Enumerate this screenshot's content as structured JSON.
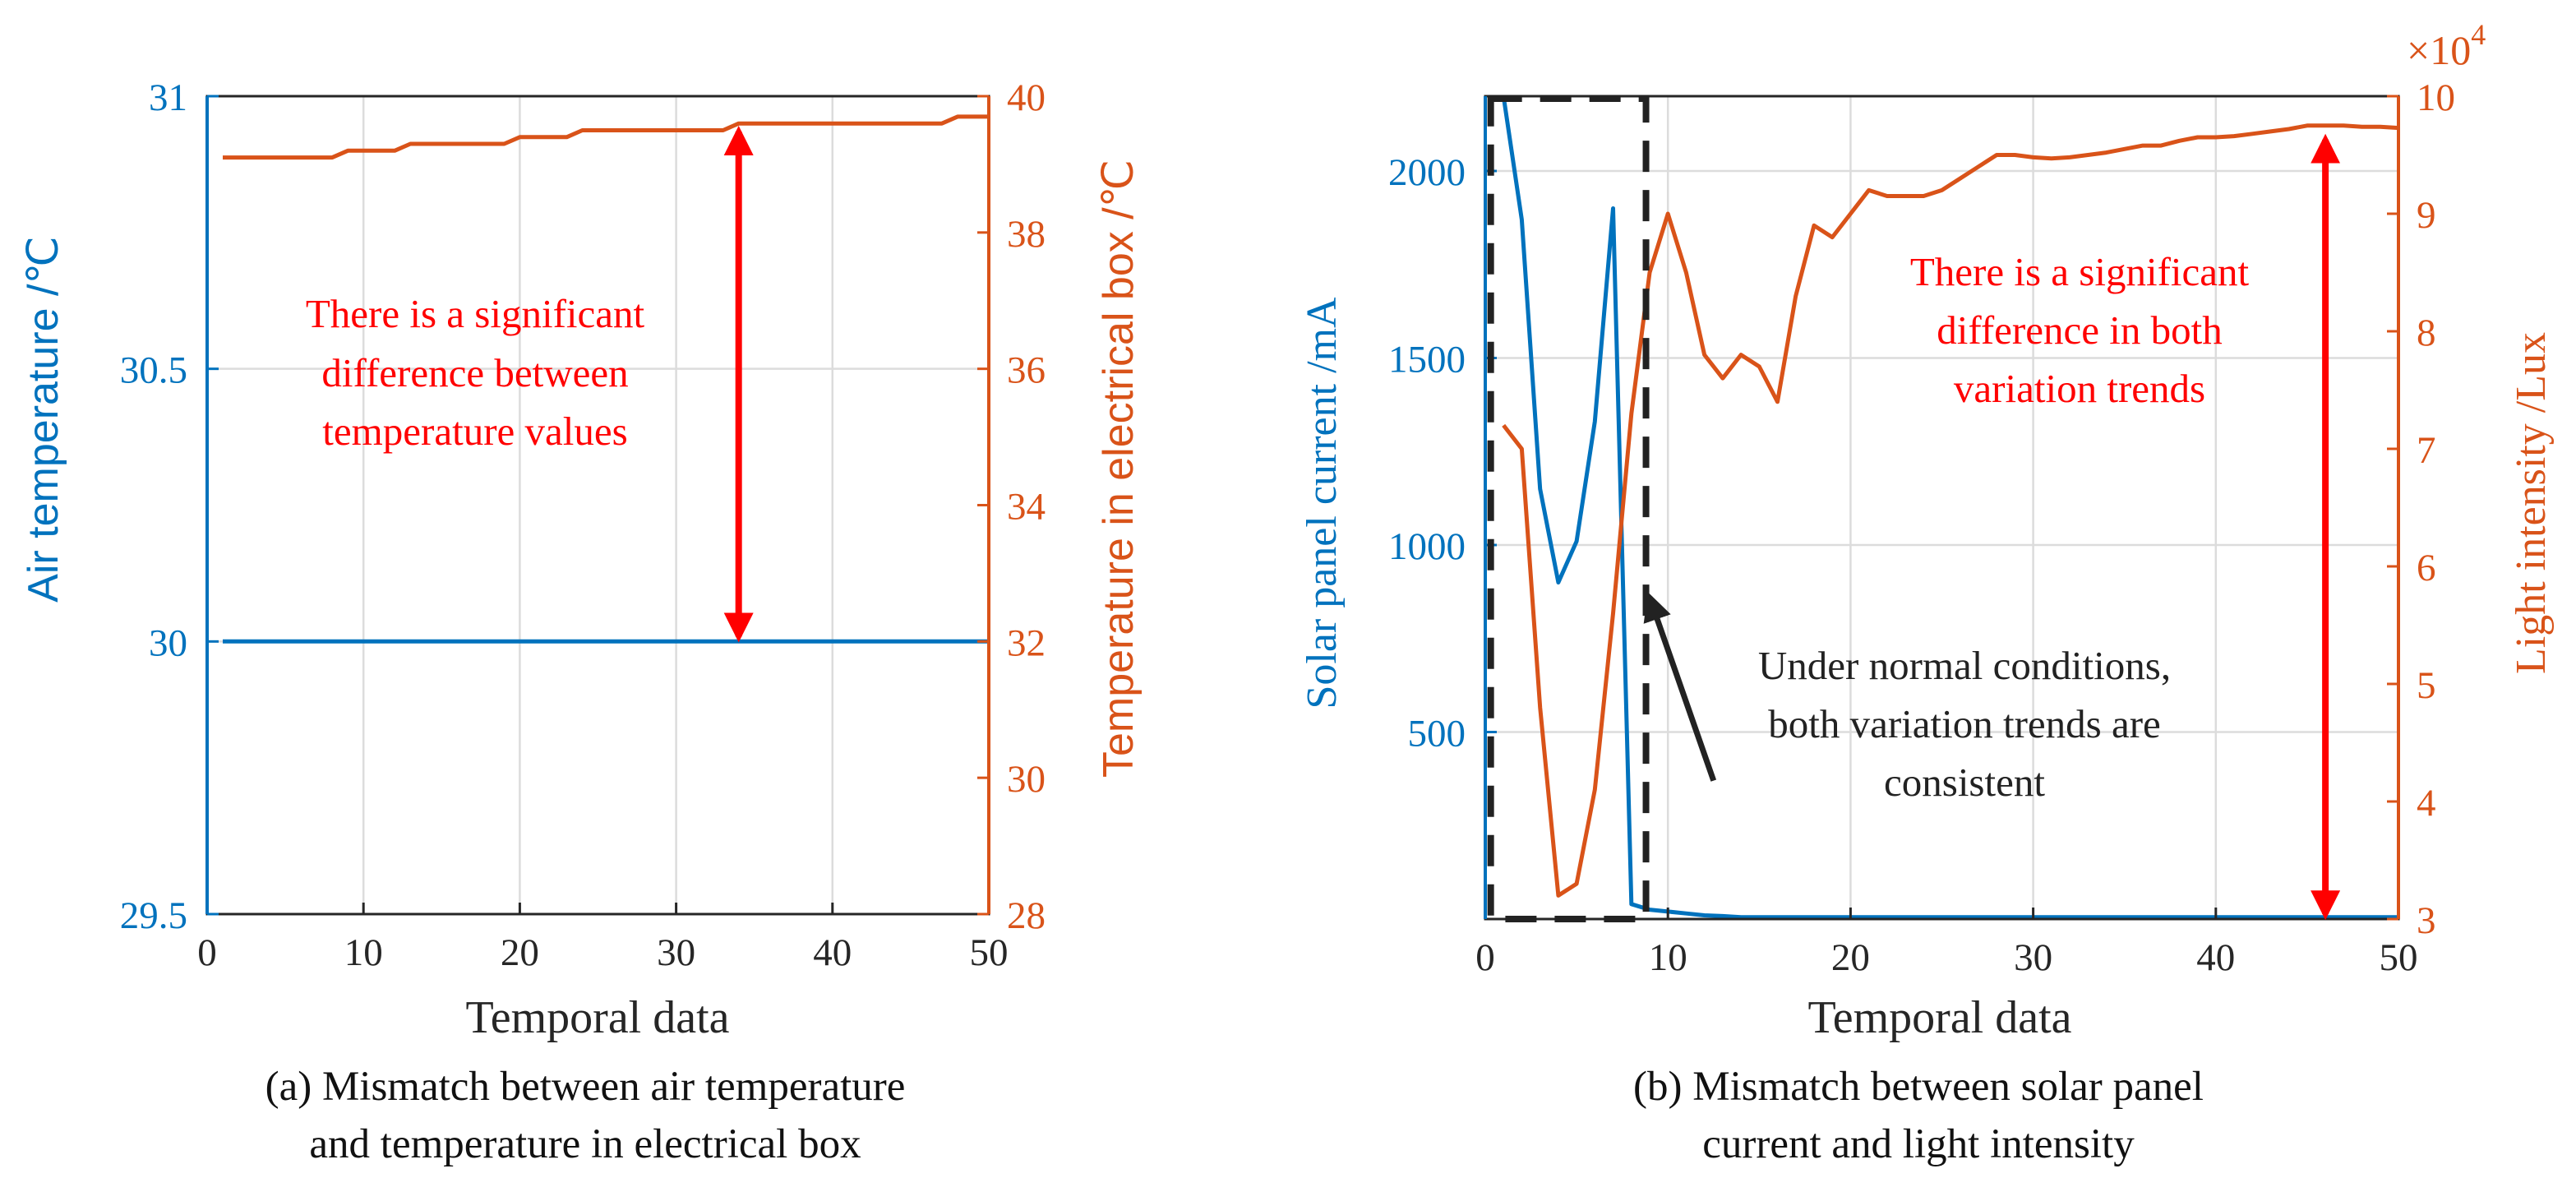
{
  "colors": {
    "blue": "#0072BD",
    "orange": "#D95319",
    "red": "#FF0000",
    "grid": "#DCDCDC",
    "axis": "#262626"
  },
  "chart_data": [
    {
      "type": "line",
      "caption_lines": [
        "(a) Mismatch between air temperature",
        "and temperature in electrical box"
      ],
      "xlabel": "Temporal data",
      "ylabel_left": "Air temperature /℃",
      "ylabel_right": "Temperature in electrical box /℃",
      "xlim": [
        0,
        50
      ],
      "ylim_left": [
        29.5,
        31
      ],
      "ylim_right": [
        28,
        40
      ],
      "xticks": [
        0,
        10,
        20,
        30,
        40,
        50
      ],
      "yticks_left": [
        29.5,
        30,
        30.5,
        31
      ],
      "ytick_labels_left": [
        "29.5",
        "30",
        "30.5",
        "31"
      ],
      "yticks_right": [
        28,
        30,
        32,
        34,
        36,
        38,
        40
      ],
      "grid": true,
      "series": [
        {
          "name": "Air temperature",
          "axis": "left",
          "color": "#0072BD",
          "x": [
            1,
            50
          ],
          "values": [
            30,
            30
          ]
        },
        {
          "name": "Temperature in electrical box",
          "axis": "right",
          "color": "#D95319",
          "x": [
            1,
            2,
            3,
            4,
            5,
            6,
            7,
            8,
            9,
            10,
            11,
            12,
            13,
            14,
            15,
            16,
            17,
            18,
            19,
            20,
            21,
            22,
            23,
            24,
            25,
            26,
            27,
            28,
            29,
            30,
            31,
            32,
            33,
            34,
            35,
            36,
            37,
            38,
            39,
            40,
            41,
            42,
            43,
            44,
            45,
            46,
            47,
            48,
            49,
            50
          ],
          "values": [
            39.1,
            39.1,
            39.1,
            39.1,
            39.1,
            39.1,
            39.1,
            39.1,
            39.2,
            39.2,
            39.2,
            39.2,
            39.3,
            39.3,
            39.3,
            39.3,
            39.3,
            39.3,
            39.3,
            39.4,
            39.4,
            39.4,
            39.4,
            39.5,
            39.5,
            39.5,
            39.5,
            39.5,
            39.5,
            39.5,
            39.5,
            39.5,
            39.5,
            39.6,
            39.6,
            39.6,
            39.6,
            39.6,
            39.6,
            39.6,
            39.6,
            39.6,
            39.6,
            39.6,
            39.6,
            39.6,
            39.6,
            39.7,
            39.7,
            39.7
          ]
        }
      ],
      "annotation": {
        "lines": [
          "There is a significant",
          "difference between",
          "temperature values"
        ],
        "arrow_x": 34,
        "arrow_from": 30,
        "arrow_to": 39.6,
        "arrow_to_axis": "right"
      }
    },
    {
      "type": "line",
      "caption_lines": [
        "(b) Mismatch between solar panel",
        "current and light intensity"
      ],
      "xlabel": "Temporal data",
      "ylabel_left": "Solar panel current /mA",
      "ylabel_right": "Light intensity /Lux",
      "right_multiplier": "×10",
      "right_exponent": "4",
      "xlim": [
        0,
        50
      ],
      "ylim_left": [
        0,
        2200
      ],
      "ylim_right": [
        3,
        10
      ],
      "xticks": [
        0,
        10,
        20,
        30,
        40,
        50
      ],
      "yticks_left": [
        500,
        1000,
        1500,
        2000
      ],
      "ytick_labels_left": [
        "500",
        "1000",
        "1500",
        "2000"
      ],
      "yticks_right": [
        3,
        4,
        5,
        6,
        7,
        8,
        9,
        10
      ],
      "grid": true,
      "series": [
        {
          "name": "Solar panel current",
          "axis": "left",
          "color": "#0072BD",
          "x": [
            1,
            2,
            3,
            4,
            5,
            6,
            7,
            8,
            9,
            10,
            11,
            12,
            13,
            14,
            15,
            16,
            17,
            18,
            19,
            20,
            21,
            22,
            23,
            24,
            25,
            26,
            27,
            28,
            29,
            30,
            31,
            32,
            33,
            34,
            35,
            36,
            37,
            38,
            39,
            40,
            41,
            42,
            43,
            44,
            45,
            46,
            47,
            48,
            49,
            50
          ],
          "values": [
            2200,
            1870,
            1150,
            900,
            1010,
            1330,
            1900,
            40,
            25,
            20,
            15,
            10,
            8,
            5,
            5,
            5,
            5,
            5,
            5,
            5,
            5,
            5,
            5,
            5,
            5,
            5,
            5,
            5,
            5,
            5,
            5,
            5,
            5,
            5,
            5,
            5,
            5,
            5,
            5,
            5,
            5,
            5,
            5,
            5,
            5,
            5,
            5,
            5,
            5,
            5
          ]
        },
        {
          "name": "Light intensity",
          "axis": "right",
          "color": "#D95319",
          "x": [
            1,
            2,
            3,
            4,
            5,
            6,
            7,
            8,
            9,
            10,
            11,
            12,
            13,
            14,
            15,
            16,
            17,
            18,
            19,
            20,
            21,
            22,
            23,
            24,
            25,
            26,
            27,
            28,
            29,
            30,
            31,
            32,
            33,
            34,
            35,
            36,
            37,
            38,
            39,
            40,
            41,
            42,
            43,
            44,
            45,
            46,
            47,
            48,
            49,
            50
          ],
          "values": [
            7.2,
            7.0,
            4.8,
            3.2,
            3.3,
            4.1,
            5.6,
            7.3,
            8.5,
            9.0,
            8.5,
            7.8,
            7.6,
            7.8,
            7.7,
            7.4,
            8.3,
            8.9,
            8.8,
            9.0,
            9.2,
            9.15,
            9.15,
            9.15,
            9.2,
            9.3,
            9.4,
            9.5,
            9.5,
            9.48,
            9.47,
            9.48,
            9.5,
            9.52,
            9.55,
            9.58,
            9.58,
            9.62,
            9.65,
            9.65,
            9.66,
            9.68,
            9.7,
            9.72,
            9.75,
            9.75,
            9.75,
            9.74,
            9.74,
            9.73
          ]
        }
      ],
      "annotation": {
        "lines": [
          "There is a significant",
          "difference in both",
          "variation trends"
        ],
        "arrow_x": 46,
        "arrow_from": 9.7,
        "arrow_from_axis": "right",
        "arrow_to": 0
      },
      "normal_annotation": {
        "lines": [
          "Under normal conditions,",
          "both variation trends are",
          "consistent"
        ],
        "box_x_range": [
          0.3,
          8.8
        ],
        "pointer_from_x": 12.5,
        "pointer_from_y": 370,
        "pointer_to_x": 9,
        "pointer_to_y": 860
      }
    }
  ]
}
